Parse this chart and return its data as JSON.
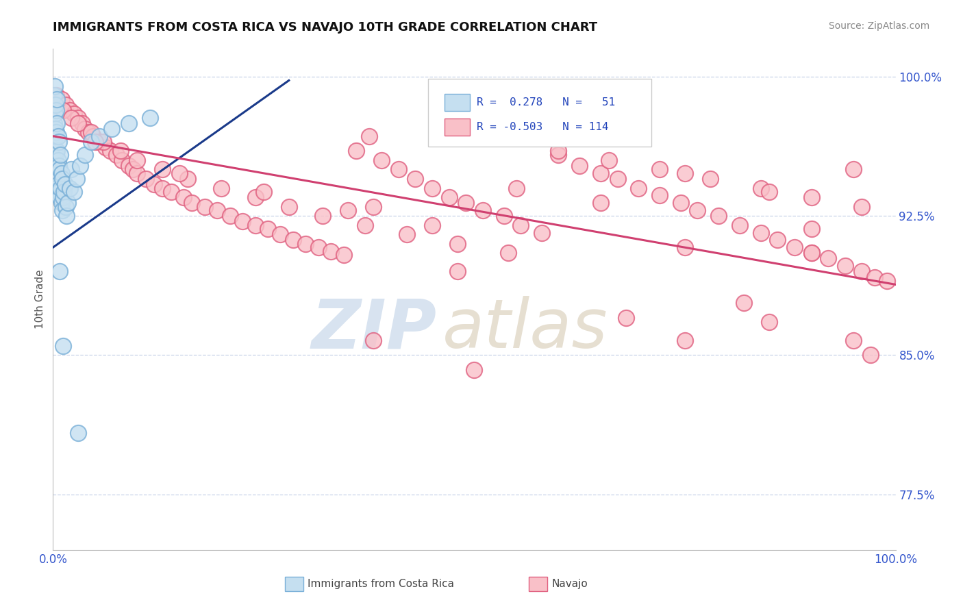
{
  "title": "IMMIGRANTS FROM COSTA RICA VS NAVAJO 10TH GRADE CORRELATION CHART",
  "source_text": "Source: ZipAtlas.com",
  "ylabel": "10th Grade",
  "xlim": [
    0.0,
    1.0
  ],
  "ylim": [
    0.745,
    1.015
  ],
  "yticks": [
    0.775,
    0.85,
    0.925,
    1.0
  ],
  "ytick_labels": [
    "77.5%",
    "85.0%",
    "92.5%",
    "100.0%"
  ],
  "xticks": [
    0.0,
    1.0
  ],
  "xtick_labels": [
    "0.0%",
    "100.0%"
  ],
  "blue_color_face": "#c5dff0",
  "blue_color_edge": "#7ab0d8",
  "pink_color_face": "#f9c0c8",
  "pink_color_edge": "#e06080",
  "blue_line_color": "#1a3a8a",
  "pink_line_color": "#d04070",
  "background_color": "#ffffff",
  "grid_color": "#c8d4e8",
  "blue_line_x": [
    0.0,
    0.28
  ],
  "blue_line_y": [
    0.908,
    0.998
  ],
  "pink_line_x": [
    0.0,
    1.0
  ],
  "pink_line_y": [
    0.968,
    0.888
  ],
  "blue_scatter_x": [
    0.001,
    0.001,
    0.002,
    0.002,
    0.002,
    0.003,
    0.003,
    0.003,
    0.003,
    0.004,
    0.004,
    0.004,
    0.004,
    0.005,
    0.005,
    0.005,
    0.005,
    0.006,
    0.006,
    0.006,
    0.007,
    0.007,
    0.007,
    0.008,
    0.008,
    0.009,
    0.009,
    0.01,
    0.01,
    0.011,
    0.011,
    0.012,
    0.013,
    0.014,
    0.015,
    0.016,
    0.018,
    0.02,
    0.022,
    0.025,
    0.028,
    0.032,
    0.038,
    0.045,
    0.055,
    0.07,
    0.09,
    0.115,
    0.012,
    0.008,
    0.03
  ],
  "blue_scatter_y": [
    0.975,
    0.99,
    0.96,
    0.98,
    0.995,
    0.955,
    0.968,
    0.985,
    0.972,
    0.94,
    0.958,
    0.97,
    0.982,
    0.948,
    0.96,
    0.975,
    0.988,
    0.942,
    0.955,
    0.968,
    0.938,
    0.952,
    0.965,
    0.935,
    0.95,
    0.94,
    0.958,
    0.932,
    0.948,
    0.928,
    0.945,
    0.935,
    0.938,
    0.942,
    0.93,
    0.925,
    0.932,
    0.94,
    0.95,
    0.938,
    0.945,
    0.952,
    0.958,
    0.965,
    0.968,
    0.972,
    0.975,
    0.978,
    0.855,
    0.895,
    0.808
  ],
  "pink_scatter_x": [
    0.004,
    0.01,
    0.015,
    0.02,
    0.025,
    0.03,
    0.035,
    0.038,
    0.042,
    0.048,
    0.055,
    0.062,
    0.068,
    0.075,
    0.082,
    0.09,
    0.095,
    0.1,
    0.11,
    0.12,
    0.13,
    0.14,
    0.155,
    0.165,
    0.18,
    0.195,
    0.21,
    0.225,
    0.24,
    0.255,
    0.27,
    0.285,
    0.3,
    0.315,
    0.33,
    0.345,
    0.36,
    0.375,
    0.39,
    0.41,
    0.43,
    0.45,
    0.47,
    0.49,
    0.51,
    0.535,
    0.555,
    0.58,
    0.6,
    0.625,
    0.65,
    0.67,
    0.695,
    0.72,
    0.745,
    0.765,
    0.79,
    0.815,
    0.84,
    0.86,
    0.88,
    0.9,
    0.92,
    0.94,
    0.96,
    0.975,
    0.99,
    0.012,
    0.022,
    0.03,
    0.045,
    0.06,
    0.08,
    0.1,
    0.13,
    0.16,
    0.2,
    0.24,
    0.28,
    0.32,
    0.37,
    0.42,
    0.48,
    0.54,
    0.6,
    0.66,
    0.72,
    0.78,
    0.84,
    0.9,
    0.96,
    0.05,
    0.15,
    0.25,
    0.35,
    0.45,
    0.55,
    0.65,
    0.75,
    0.85,
    0.95,
    0.38,
    0.48,
    0.75,
    0.9,
    0.75,
    0.85,
    0.9,
    0.82,
    0.95,
    0.97,
    0.38,
    0.5,
    0.68
  ],
  "pink_scatter_y": [
    0.99,
    0.988,
    0.985,
    0.982,
    0.98,
    0.978,
    0.975,
    0.972,
    0.97,
    0.968,
    0.965,
    0.962,
    0.96,
    0.958,
    0.955,
    0.952,
    0.95,
    0.948,
    0.945,
    0.942,
    0.94,
    0.938,
    0.935,
    0.932,
    0.93,
    0.928,
    0.925,
    0.922,
    0.92,
    0.918,
    0.915,
    0.912,
    0.91,
    0.908,
    0.906,
    0.904,
    0.96,
    0.968,
    0.955,
    0.95,
    0.945,
    0.94,
    0.935,
    0.932,
    0.928,
    0.925,
    0.92,
    0.916,
    0.958,
    0.952,
    0.948,
    0.945,
    0.94,
    0.936,
    0.932,
    0.928,
    0.925,
    0.92,
    0.916,
    0.912,
    0.908,
    0.905,
    0.902,
    0.898,
    0.895,
    0.892,
    0.89,
    0.982,
    0.978,
    0.975,
    0.97,
    0.965,
    0.96,
    0.955,
    0.95,
    0.945,
    0.94,
    0.935,
    0.93,
    0.925,
    0.92,
    0.915,
    0.91,
    0.905,
    0.96,
    0.955,
    0.95,
    0.945,
    0.94,
    0.935,
    0.93,
    0.965,
    0.948,
    0.938,
    0.928,
    0.92,
    0.94,
    0.932,
    0.948,
    0.938,
    0.95,
    0.93,
    0.895,
    0.908,
    0.905,
    0.858,
    0.868,
    0.918,
    0.878,
    0.858,
    0.85,
    0.858,
    0.842,
    0.87
  ]
}
